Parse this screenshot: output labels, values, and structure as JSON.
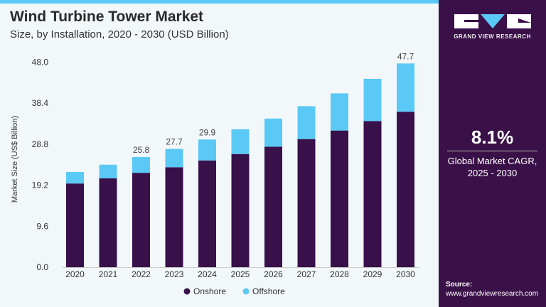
{
  "header": {
    "title": "Wind Turbine Tower Market",
    "subtitle": "Size, by Installation, 2020 - 2030 (USD Billion)"
  },
  "brand": {
    "name": "GRAND VIEW RESEARCH"
  },
  "side": {
    "cagr_value": "8.1%",
    "cagr_label_1": "Global Market CAGR,",
    "cagr_label_2": "2025 - 2030",
    "source_label": "Source:",
    "source_url": "www.grandviewresearch.com"
  },
  "colors": {
    "onshore": "#38104a",
    "offshore": "#5bc9f5",
    "panel": "#3a1048"
  },
  "chart_data": {
    "type": "bar",
    "stacked": true,
    "categories": [
      "2020",
      "2021",
      "2022",
      "2023",
      "2024",
      "2025",
      "2026",
      "2027",
      "2028",
      "2029",
      "2030"
    ],
    "series": [
      {
        "name": "Onshore",
        "values": [
          19.6,
          20.8,
          22.1,
          23.4,
          25.0,
          26.5,
          28.2,
          30.0,
          32.0,
          34.2,
          36.4
        ]
      },
      {
        "name": "Offshore",
        "values": [
          2.7,
          3.2,
          3.7,
          4.3,
          4.9,
          5.8,
          6.6,
          7.7,
          8.7,
          9.9,
          11.3
        ]
      }
    ],
    "data_labels": [
      {
        "category": "2022",
        "text": "25.8"
      },
      {
        "category": "2023",
        "text": "27.7"
      },
      {
        "category": "2024",
        "text": "29.9"
      },
      {
        "category": "2030",
        "text": "47.7"
      }
    ],
    "ylabel": "Market Size (US$ Billion)",
    "xlabel": "",
    "yticks": [
      "0.0",
      "9.6",
      "19.2",
      "28.8",
      "38.4",
      "48.0"
    ],
    "ylim": [
      0,
      48
    ],
    "grid": false,
    "legend": "bottom"
  }
}
